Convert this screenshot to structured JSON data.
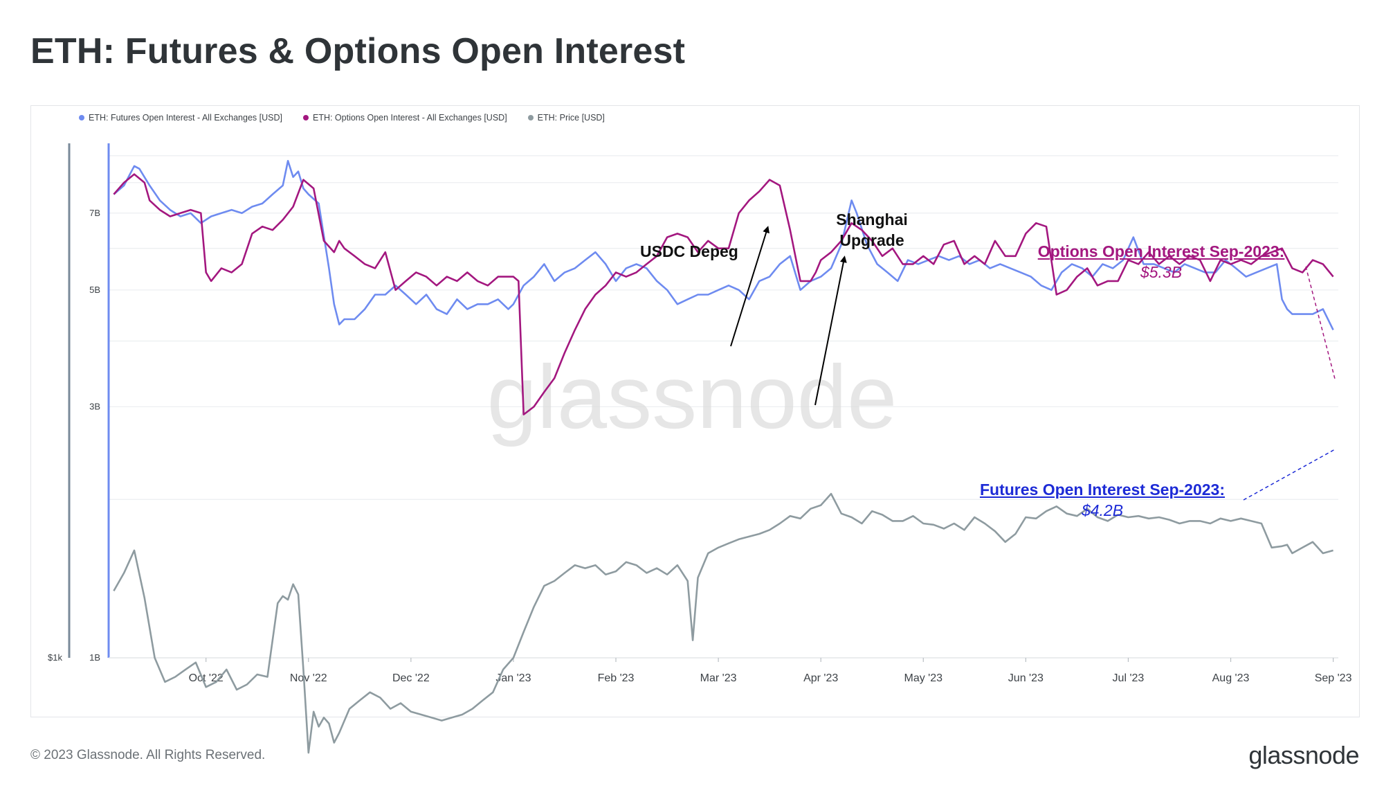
{
  "title": "ETH: Futures & Options Open Interest",
  "footer": "© 2023 Glassnode. All Rights Reserved.",
  "brand": "glassnode",
  "watermark": "glassnode",
  "colors": {
    "futures": "#6e8bf0",
    "options": "#a3177f",
    "price": "#8e9ba0",
    "futures_callout": "#1d2bd6",
    "options_callout": "#a3177f"
  },
  "annotations": {
    "usdc": "USDC Depeg",
    "shanghai_1": "Shanghai",
    "shanghai_2": "Upgrade",
    "options_label": "Options Open Interest Sep-2023:",
    "options_value": "$5.3B",
    "futures_label": "Futures Open Interest Sep-2023:",
    "futures_value": "$4.2B"
  },
  "chart_data": {
    "type": "line",
    "title": "ETH: Futures & Options Open Interest",
    "legend": [
      "ETH: Futures Open Interest - All Exchanges [USD]",
      "ETH: Options Open Interest - All Exchanges [USD]",
      "ETH: Price [USD]"
    ],
    "y_left": {
      "scale": "log",
      "ticks": [
        "1B",
        "3B",
        "5B",
        "7B"
      ],
      "range": [
        1,
        9.5
      ]
    },
    "y_right": {
      "ticks": [
        "$1k"
      ]
    },
    "x_ticks": [
      "Oct '22",
      "Nov '22",
      "Dec '22",
      "Jan '23",
      "Feb '23",
      "Mar '23",
      "Apr '23",
      "May '23",
      "Jun '23",
      "Jul '23",
      "Aug '23",
      "Sep '23"
    ],
    "x_range_months": [
      -0.95,
      11.05
    ],
    "series": [
      {
        "name": "ETH: Futures Open Interest - All Exchanges [USD]",
        "t": [
          -0.9,
          -0.8,
          -0.7,
          -0.65,
          -0.55,
          -0.45,
          -0.35,
          -0.25,
          -0.15,
          -0.05,
          0.05,
          0.15,
          0.25,
          0.35,
          0.45,
          0.55,
          0.65,
          0.75,
          0.8,
          0.85,
          0.9,
          0.95,
          1.0,
          1.1,
          1.2,
          1.25,
          1.3,
          1.35,
          1.45,
          1.55,
          1.65,
          1.75,
          1.85,
          1.95,
          2.05,
          2.15,
          2.25,
          2.35,
          2.45,
          2.55,
          2.65,
          2.75,
          2.85,
          2.95,
          3.0,
          3.1,
          3.2,
          3.3,
          3.4,
          3.5,
          3.6,
          3.7,
          3.8,
          3.9,
          4.0,
          4.1,
          4.2,
          4.3,
          4.4,
          4.5,
          4.6,
          4.7,
          4.8,
          4.9,
          5.0,
          5.1,
          5.2,
          5.3,
          5.4,
          5.5,
          5.6,
          5.7,
          5.8,
          5.9,
          6.0,
          6.1,
          6.2,
          6.3,
          6.35,
          6.45,
          6.55,
          6.65,
          6.75,
          6.85,
          6.95,
          7.05,
          7.15,
          7.25,
          7.35,
          7.45,
          7.55,
          7.65,
          7.75,
          7.85,
          7.95,
          8.05,
          8.15,
          8.25,
          8.35,
          8.45,
          8.55,
          8.65,
          8.75,
          8.85,
          8.95,
          9.05,
          9.15,
          9.25,
          9.35,
          9.45,
          9.55,
          9.65,
          9.75,
          9.85,
          9.95,
          10.05,
          10.15,
          10.25,
          10.35,
          10.45,
          10.5,
          10.55,
          10.6,
          10.7,
          10.8,
          10.9,
          11.0
        ],
        "values": [
          7.6,
          7.9,
          8.6,
          8.5,
          7.9,
          7.4,
          7.1,
          6.9,
          7.0,
          6.7,
          6.9,
          7.0,
          7.1,
          7.0,
          7.2,
          7.3,
          7.6,
          7.9,
          8.8,
          8.2,
          8.4,
          7.8,
          7.6,
          7.3,
          5.5,
          4.7,
          4.3,
          4.4,
          4.4,
          4.6,
          4.9,
          4.9,
          5.1,
          4.9,
          4.7,
          4.9,
          4.6,
          4.5,
          4.8,
          4.6,
          4.7,
          4.7,
          4.8,
          4.6,
          4.7,
          5.1,
          5.3,
          5.6,
          5.2,
          5.4,
          5.5,
          5.7,
          5.9,
          5.6,
          5.2,
          5.5,
          5.6,
          5.5,
          5.2,
          5.0,
          4.7,
          4.8,
          4.9,
          4.9,
          5.0,
          5.1,
          5.0,
          4.8,
          5.2,
          5.3,
          5.6,
          5.8,
          5.0,
          5.2,
          5.3,
          5.5,
          6.1,
          7.4,
          7.0,
          6.1,
          5.6,
          5.4,
          5.2,
          5.7,
          5.6,
          5.7,
          5.8,
          5.7,
          5.8,
          5.6,
          5.7,
          5.5,
          5.6,
          5.5,
          5.4,
          5.3,
          5.1,
          5.0,
          5.4,
          5.6,
          5.5,
          5.3,
          5.6,
          5.5,
          5.7,
          6.3,
          5.6,
          5.6,
          5.5,
          5.4,
          5.6,
          5.5,
          5.4,
          5.4,
          5.7,
          5.5,
          5.3,
          5.4,
          5.5,
          5.6,
          4.8,
          4.6,
          4.5,
          4.5,
          4.5,
          4.6,
          4.2
        ]
      },
      {
        "name": "ETH: Options Open Interest - All Exchanges [USD]",
        "t": [
          -0.9,
          -0.8,
          -0.7,
          -0.6,
          -0.55,
          -0.45,
          -0.35,
          -0.25,
          -0.15,
          -0.05,
          0.0,
          0.05,
          0.15,
          0.25,
          0.35,
          0.45,
          0.55,
          0.65,
          0.75,
          0.85,
          0.95,
          1.05,
          1.15,
          1.25,
          1.3,
          1.35,
          1.45,
          1.55,
          1.65,
          1.75,
          1.85,
          1.95,
          2.05,
          2.15,
          2.25,
          2.35,
          2.45,
          2.55,
          2.65,
          2.75,
          2.85,
          2.95,
          3.0,
          3.05,
          3.1,
          3.2,
          3.3,
          3.4,
          3.5,
          3.6,
          3.7,
          3.8,
          3.9,
          4.0,
          4.1,
          4.2,
          4.3,
          4.4,
          4.5,
          4.6,
          4.7,
          4.8,
          4.9,
          5.0,
          5.1,
          5.2,
          5.3,
          5.4,
          5.5,
          5.6,
          5.7,
          5.8,
          5.9,
          5.95,
          6.0,
          6.1,
          6.2,
          6.3,
          6.4,
          6.5,
          6.6,
          6.7,
          6.8,
          6.9,
          7.0,
          7.1,
          7.2,
          7.3,
          7.4,
          7.5,
          7.6,
          7.7,
          7.8,
          7.9,
          8.0,
          8.1,
          8.2,
          8.3,
          8.4,
          8.5,
          8.6,
          8.7,
          8.8,
          8.9,
          9.0,
          9.1,
          9.2,
          9.3,
          9.4,
          9.5,
          9.6,
          9.7,
          9.8,
          9.9,
          10.0,
          10.1,
          10.2,
          10.3,
          10.4,
          10.5,
          10.6,
          10.7,
          10.8,
          10.9,
          11.0
        ],
        "values": [
          7.6,
          8.0,
          8.3,
          8.0,
          7.4,
          7.1,
          6.9,
          7.0,
          7.1,
          7.0,
          5.4,
          5.2,
          5.5,
          5.4,
          5.6,
          6.4,
          6.6,
          6.5,
          6.8,
          7.2,
          8.1,
          7.8,
          6.2,
          5.9,
          6.2,
          6.0,
          5.8,
          5.6,
          5.5,
          5.9,
          5.0,
          5.2,
          5.4,
          5.3,
          5.1,
          5.3,
          5.2,
          5.4,
          5.2,
          5.1,
          5.3,
          5.3,
          5.3,
          5.2,
          2.9,
          3.0,
          3.2,
          3.4,
          3.8,
          4.2,
          4.6,
          4.9,
          5.1,
          5.4,
          5.3,
          5.4,
          5.6,
          5.8,
          6.3,
          6.4,
          6.3,
          5.9,
          6.2,
          6.0,
          6.0,
          7.0,
          7.4,
          7.7,
          8.1,
          7.9,
          6.5,
          5.2,
          5.2,
          5.4,
          5.7,
          5.9,
          6.2,
          6.7,
          6.5,
          6.2,
          5.8,
          6.0,
          5.6,
          5.6,
          5.8,
          5.6,
          6.1,
          6.2,
          5.6,
          5.8,
          5.6,
          6.2,
          5.8,
          5.8,
          6.4,
          6.7,
          6.6,
          4.9,
          5.0,
          5.3,
          5.5,
          5.1,
          5.2,
          5.2,
          5.7,
          5.6,
          5.9,
          5.6,
          5.8,
          5.6,
          5.8,
          5.7,
          5.2,
          5.7,
          5.6,
          5.7,
          5.6,
          5.8,
          5.9,
          6.0,
          5.5,
          5.4,
          5.7,
          5.6,
          5.3
        ]
      },
      {
        "name": "ETH: Price [USD]",
        "t": [
          -0.9,
          -0.8,
          -0.7,
          -0.6,
          -0.5,
          -0.4,
          -0.3,
          -0.2,
          -0.1,
          0.0,
          0.1,
          0.2,
          0.3,
          0.4,
          0.5,
          0.6,
          0.7,
          0.75,
          0.8,
          0.85,
          0.9,
          0.95,
          1.0,
          1.05,
          1.1,
          1.15,
          1.2,
          1.25,
          1.3,
          1.4,
          1.5,
          1.6,
          1.7,
          1.8,
          1.9,
          2.0,
          2.1,
          2.2,
          2.3,
          2.4,
          2.5,
          2.6,
          2.7,
          2.8,
          2.9,
          3.0,
          3.1,
          3.2,
          3.3,
          3.4,
          3.5,
          3.6,
          3.7,
          3.8,
          3.9,
          4.0,
          4.1,
          4.2,
          4.3,
          4.4,
          4.5,
          4.6,
          4.7,
          4.75,
          4.8,
          4.9,
          5.0,
          5.1,
          5.2,
          5.3,
          5.4,
          5.5,
          5.6,
          5.7,
          5.8,
          5.9,
          6.0,
          6.1,
          6.2,
          6.3,
          6.4,
          6.5,
          6.6,
          6.7,
          6.8,
          6.9,
          7.0,
          7.1,
          7.2,
          7.3,
          7.4,
          7.5,
          7.6,
          7.7,
          7.8,
          7.9,
          8.0,
          8.1,
          8.2,
          8.3,
          8.4,
          8.5,
          8.6,
          8.7,
          8.8,
          8.9,
          9.0,
          9.1,
          9.2,
          9.3,
          9.4,
          9.5,
          9.6,
          9.7,
          9.8,
          9.9,
          10.0,
          10.1,
          10.2,
          10.3,
          10.4,
          10.5,
          10.55,
          10.6,
          10.7,
          10.8,
          10.9,
          11.0
        ],
        "values": [
          1.34,
          1.45,
          1.6,
          1.3,
          1.0,
          0.9,
          0.92,
          0.95,
          0.98,
          0.88,
          0.9,
          0.95,
          0.87,
          0.89,
          0.93,
          0.92,
          1.27,
          1.31,
          1.29,
          1.38,
          1.32,
          0.95,
          0.66,
          0.79,
          0.74,
          0.77,
          0.75,
          0.69,
          0.72,
          0.8,
          0.83,
          0.86,
          0.84,
          0.8,
          0.82,
          0.79,
          0.78,
          0.77,
          0.76,
          0.77,
          0.78,
          0.8,
          0.83,
          0.86,
          0.95,
          1.0,
          1.12,
          1.25,
          1.37,
          1.4,
          1.45,
          1.5,
          1.48,
          1.5,
          1.44,
          1.46,
          1.52,
          1.5,
          1.45,
          1.48,
          1.44,
          1.5,
          1.4,
          1.08,
          1.42,
          1.58,
          1.62,
          1.65,
          1.68,
          1.7,
          1.72,
          1.75,
          1.8,
          1.86,
          1.84,
          1.92,
          1.95,
          2.05,
          1.88,
          1.85,
          1.8,
          1.9,
          1.87,
          1.82,
          1.82,
          1.86,
          1.8,
          1.79,
          1.76,
          1.8,
          1.75,
          1.85,
          1.8,
          1.74,
          1.66,
          1.72,
          1.85,
          1.84,
          1.9,
          1.94,
          1.88,
          1.86,
          1.92,
          1.85,
          1.82,
          1.87,
          1.85,
          1.86,
          1.84,
          1.85,
          1.83,
          1.8,
          1.82,
          1.82,
          1.8,
          1.84,
          1.82,
          1.84,
          1.82,
          1.8,
          1.62,
          1.63,
          1.64,
          1.58,
          1.62,
          1.66,
          1.58,
          1.6
        ]
      }
    ]
  }
}
